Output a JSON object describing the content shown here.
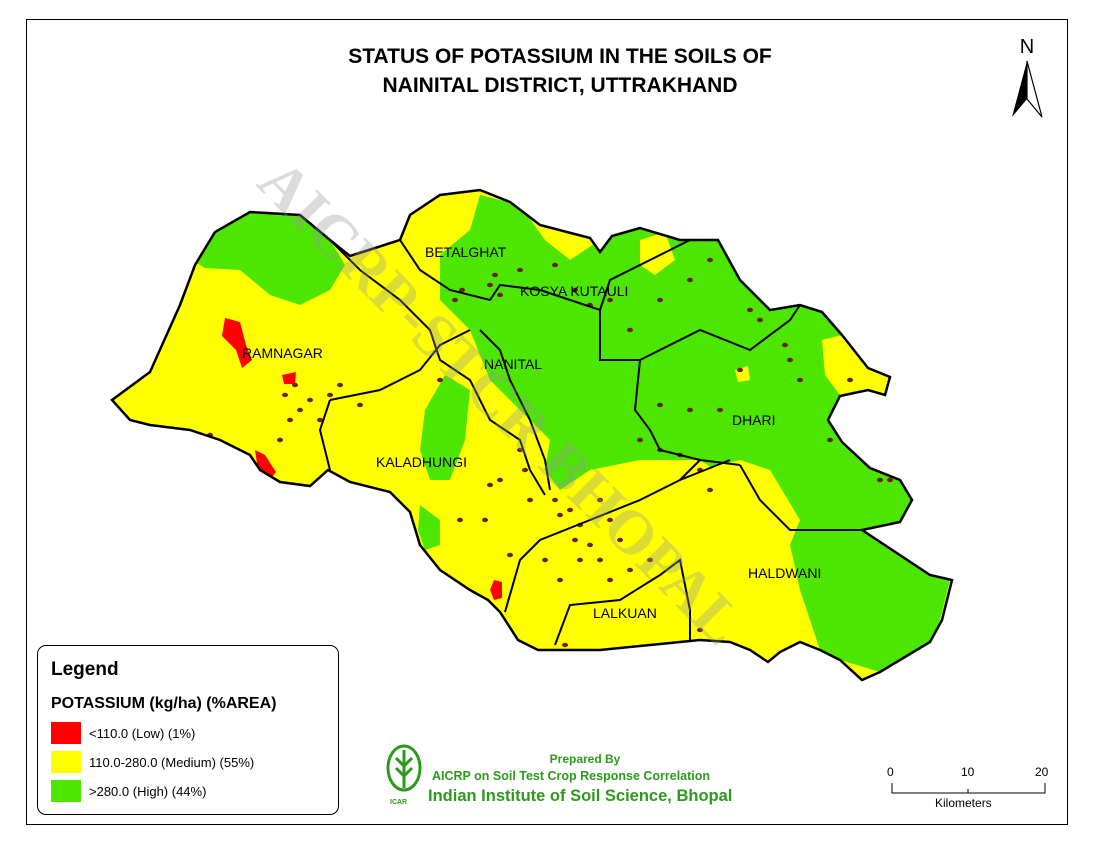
{
  "title": {
    "line1": "STATUS OF POTASSIUM IN THE SOILS OF",
    "line2": "NAINITAL DISTRICT, UTTRAKHAND"
  },
  "watermark": "AICRP-STCR BHOPAL",
  "north_arrow": {
    "label": "N",
    "icon": "north-arrow-icon"
  },
  "districts": [
    "BETALGHAT",
    "KOSYA KUTAULI",
    "RAMNAGAR",
    "NANITAL",
    "DHARI",
    "KALADHUNGI",
    "HALDWANI",
    "LALKUAN"
  ],
  "legend": {
    "title": "Legend",
    "subtitle": "POTASSIUM (kg/ha) (%AREA)",
    "items": [
      {
        "label": "<110.0 (Low) (1%)",
        "color": "#ff0000",
        "percent_area": 1
      },
      {
        "label": "110.0-280.0 (Medium) (55%)",
        "color": "#ffff00",
        "percent_area": 55
      },
      {
        "label": ">280.0 (High) (44%)",
        "color": "#4ce600",
        "percent_area": 44
      }
    ]
  },
  "credit": {
    "prepared_by": "Prepared By",
    "org": "AICRP on Soil Test Crop Response Correlation",
    "institute": "Indian Institute of Soil Science, Bhopal",
    "logo_text": "ICAR"
  },
  "scale_bar": {
    "ticks": [
      "0",
      "10",
      "20"
    ],
    "unit": "Kilometers"
  },
  "colors": {
    "low": "#ff0000",
    "medium": "#ffff00",
    "high": "#4ce600",
    "sample_point": "#6b1f1f",
    "text_green": "#2e9a1c"
  }
}
